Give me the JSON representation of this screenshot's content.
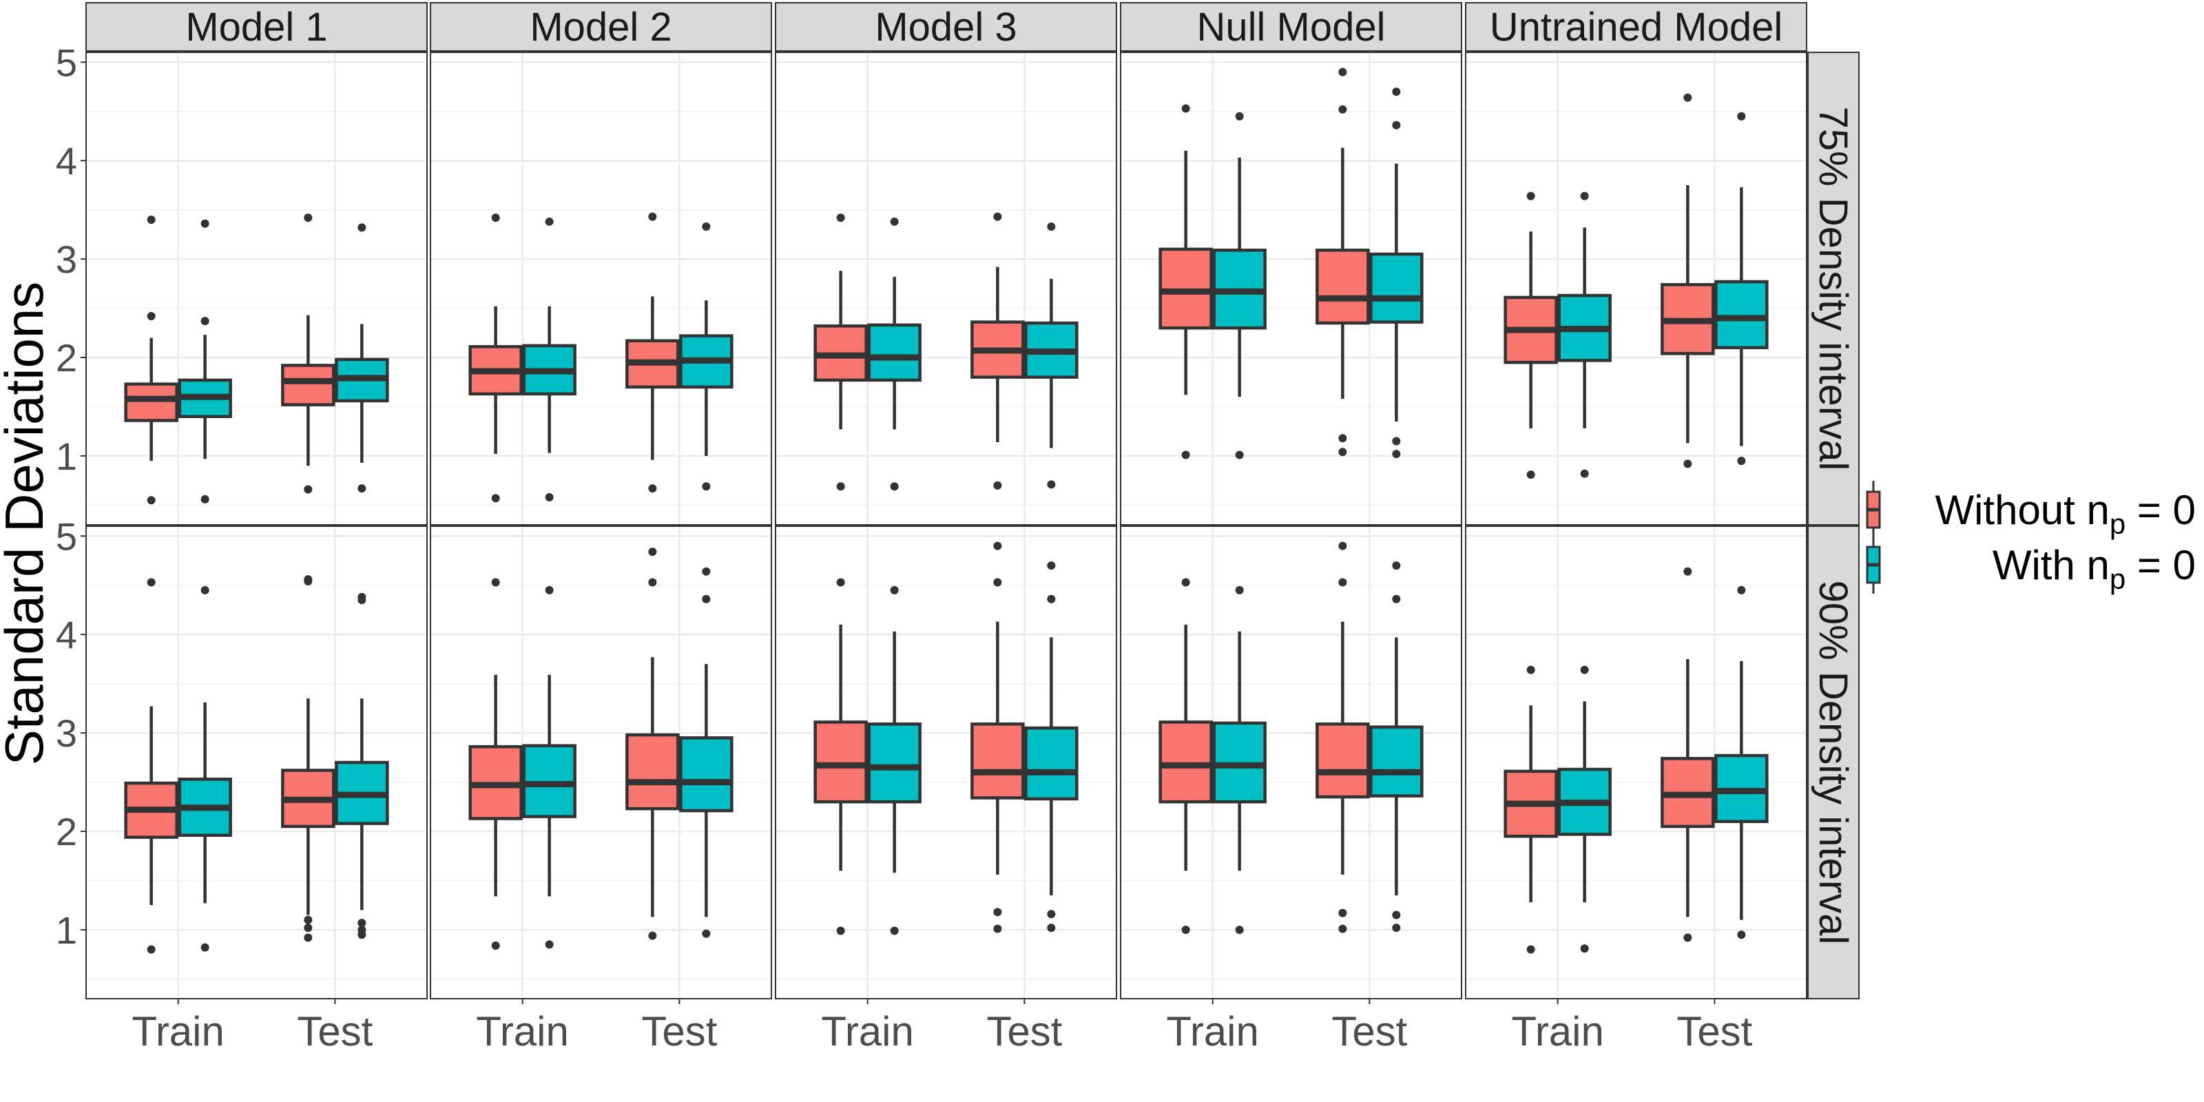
{
  "chart_data": {
    "type": "boxplot",
    "ylabel": "Standard Deviations",
    "xlabel": "",
    "ylim": [
      0.3,
      5.1
    ],
    "y_ticks": [
      1,
      2,
      3,
      4,
      5
    ],
    "x_categories": [
      "Train",
      "Test"
    ],
    "facet_columns": [
      "Model 1",
      "Model 2",
      "Model 3",
      "Null Model",
      "Untrained Model"
    ],
    "facet_rows": [
      "75% Density interval",
      "90% Density interval"
    ],
    "grid": true,
    "legend_position": "right",
    "legend": [
      {
        "key": "without",
        "label_prefix": "Without ",
        "symbol": "n",
        "subscript": "p",
        "label_suffix": " = 0",
        "color": "#F8766D"
      },
      {
        "key": "with",
        "label_prefix": "With ",
        "symbol": "n",
        "subscript": "p",
        "label_suffix": " = 0",
        "color": "#00BFC4"
      }
    ],
    "colors": {
      "without": "#F8766D",
      "with": "#00BFC4",
      "line": "#333333",
      "strip_bg": "#D9D9D9",
      "border": "#333333"
    },
    "panels": [
      {
        "col": "Model 1",
        "row": "75% Density interval",
        "groups": [
          {
            "category": "Train",
            "series": "without",
            "min": 0.95,
            "q1": 1.36,
            "median": 1.58,
            "q3": 1.73,
            "max": 2.2,
            "outliers": [
              0.55,
              2.42,
              3.4
            ]
          },
          {
            "category": "Train",
            "series": "with",
            "min": 0.97,
            "q1": 1.4,
            "median": 1.6,
            "q3": 1.77,
            "max": 2.23,
            "outliers": [
              0.56,
              2.37,
              3.36
            ]
          },
          {
            "category": "Test",
            "series": "without",
            "min": 0.9,
            "q1": 1.52,
            "median": 1.76,
            "q3": 1.92,
            "max": 2.43,
            "outliers": [
              0.66,
              3.42
            ]
          },
          {
            "category": "Test",
            "series": "with",
            "min": 0.93,
            "q1": 1.56,
            "median": 1.79,
            "q3": 1.98,
            "max": 2.34,
            "outliers": [
              0.67,
              3.32
            ]
          }
        ]
      },
      {
        "col": "Model 2",
        "row": "75% Density interval",
        "groups": [
          {
            "category": "Train",
            "series": "without",
            "min": 1.02,
            "q1": 1.63,
            "median": 1.86,
            "q3": 2.11,
            "max": 2.52,
            "outliers": [
              0.57,
              3.42
            ]
          },
          {
            "category": "Train",
            "series": "with",
            "min": 1.03,
            "q1": 1.63,
            "median": 1.86,
            "q3": 2.12,
            "max": 2.52,
            "outliers": [
              0.58,
              3.38
            ]
          },
          {
            "category": "Test",
            "series": "without",
            "min": 0.96,
            "q1": 1.7,
            "median": 1.95,
            "q3": 2.17,
            "max": 2.62,
            "outliers": [
              0.67,
              3.43
            ]
          },
          {
            "category": "Test",
            "series": "with",
            "min": 1.0,
            "q1": 1.7,
            "median": 1.97,
            "q3": 2.22,
            "max": 2.58,
            "outliers": [
              0.69,
              3.33
            ]
          }
        ]
      },
      {
        "col": "Model 3",
        "row": "75% Density interval",
        "groups": [
          {
            "category": "Train",
            "series": "without",
            "min": 1.27,
            "q1": 1.77,
            "median": 2.02,
            "q3": 2.32,
            "max": 2.88,
            "outliers": [
              0.69,
              3.42
            ]
          },
          {
            "category": "Train",
            "series": "with",
            "min": 1.27,
            "q1": 1.77,
            "median": 2.0,
            "q3": 2.33,
            "max": 2.82,
            "outliers": [
              0.69,
              3.38
            ]
          },
          {
            "category": "Test",
            "series": "without",
            "min": 1.14,
            "q1": 1.8,
            "median": 2.07,
            "q3": 2.36,
            "max": 2.92,
            "outliers": [
              0.7,
              3.43
            ]
          },
          {
            "category": "Test",
            "series": "with",
            "min": 1.08,
            "q1": 1.8,
            "median": 2.06,
            "q3": 2.35,
            "max": 2.8,
            "outliers": [
              0.71,
              3.33
            ]
          }
        ]
      },
      {
        "col": "Null Model",
        "row": "75% Density interval",
        "groups": [
          {
            "category": "Train",
            "series": "without",
            "min": 1.62,
            "q1": 2.3,
            "median": 2.67,
            "q3": 3.1,
            "max": 4.1,
            "outliers": [
              1.01,
              4.53
            ]
          },
          {
            "category": "Train",
            "series": "with",
            "min": 1.6,
            "q1": 2.3,
            "median": 2.67,
            "q3": 3.09,
            "max": 4.03,
            "outliers": [
              1.01,
              4.45
            ]
          },
          {
            "category": "Test",
            "series": "without",
            "min": 1.58,
            "q1": 2.35,
            "median": 2.6,
            "q3": 3.09,
            "max": 4.13,
            "outliers": [
              1.04,
              1.18,
              4.52,
              4.9
            ]
          },
          {
            "category": "Test",
            "series": "with",
            "min": 1.35,
            "q1": 2.36,
            "median": 2.6,
            "q3": 3.05,
            "max": 3.97,
            "outliers": [
              1.02,
              1.15,
              4.36,
              4.7
            ]
          }
        ]
      },
      {
        "col": "Untrained Model",
        "row": "75% Density interval",
        "groups": [
          {
            "category": "Train",
            "series": "without",
            "min": 1.28,
            "q1": 1.95,
            "median": 2.28,
            "q3": 2.61,
            "max": 3.28,
            "outliers": [
              0.81,
              3.64
            ]
          },
          {
            "category": "Train",
            "series": "with",
            "min": 1.28,
            "q1": 1.97,
            "median": 2.29,
            "q3": 2.63,
            "max": 3.32,
            "outliers": [
              0.82,
              3.64
            ]
          },
          {
            "category": "Test",
            "series": "without",
            "min": 1.13,
            "q1": 2.04,
            "median": 2.37,
            "q3": 2.74,
            "max": 3.75,
            "outliers": [
              0.92,
              4.64
            ]
          },
          {
            "category": "Test",
            "series": "with",
            "min": 1.1,
            "q1": 2.1,
            "median": 2.4,
            "q3": 2.77,
            "max": 3.73,
            "outliers": [
              0.95,
              4.45
            ]
          }
        ]
      },
      {
        "col": "Model 1",
        "row": "90% Density interval",
        "groups": [
          {
            "category": "Train",
            "series": "without",
            "min": 1.25,
            "q1": 1.94,
            "median": 2.22,
            "q3": 2.49,
            "max": 3.27,
            "outliers": [
              0.8,
              4.53
            ]
          },
          {
            "category": "Train",
            "series": "with",
            "min": 1.27,
            "q1": 1.96,
            "median": 2.24,
            "q3": 2.53,
            "max": 3.31,
            "outliers": [
              0.82,
              4.45
            ]
          },
          {
            "category": "Test",
            "series": "without",
            "min": 1.15,
            "q1": 2.05,
            "median": 2.32,
            "q3": 2.62,
            "max": 3.35,
            "outliers": [
              0.92,
              1.02,
              1.1,
              4.54,
              4.56
            ]
          },
          {
            "category": "Test",
            "series": "with",
            "min": 1.2,
            "q1": 2.08,
            "median": 2.37,
            "q3": 2.7,
            "max": 3.35,
            "outliers": [
              0.95,
              1.0,
              1.07,
              4.35,
              4.38
            ]
          }
        ]
      },
      {
        "col": "Model 2",
        "row": "90% Density interval",
        "groups": [
          {
            "category": "Train",
            "series": "without",
            "min": 1.34,
            "q1": 2.13,
            "median": 2.47,
            "q3": 2.86,
            "max": 3.59,
            "outliers": [
              0.84,
              4.53
            ]
          },
          {
            "category": "Train",
            "series": "with",
            "min": 1.34,
            "q1": 2.15,
            "median": 2.48,
            "q3": 2.87,
            "max": 3.59,
            "outliers": [
              0.85,
              4.45
            ]
          },
          {
            "category": "Test",
            "series": "without",
            "min": 1.13,
            "q1": 2.23,
            "median": 2.5,
            "q3": 2.98,
            "max": 3.77,
            "outliers": [
              0.94,
              4.53,
              4.84
            ]
          },
          {
            "category": "Test",
            "series": "with",
            "min": 1.13,
            "q1": 2.21,
            "median": 2.5,
            "q3": 2.95,
            "max": 3.7,
            "outliers": [
              0.96,
              4.36,
              4.64
            ]
          }
        ]
      },
      {
        "col": "Model 3",
        "row": "90% Density interval",
        "groups": [
          {
            "category": "Train",
            "series": "without",
            "min": 1.6,
            "q1": 2.3,
            "median": 2.67,
            "q3": 3.11,
            "max": 4.1,
            "outliers": [
              0.99,
              4.53
            ]
          },
          {
            "category": "Train",
            "series": "with",
            "min": 1.58,
            "q1": 2.3,
            "median": 2.65,
            "q3": 3.09,
            "max": 4.03,
            "outliers": [
              0.99,
              4.45
            ]
          },
          {
            "category": "Test",
            "series": "without",
            "min": 1.56,
            "q1": 2.34,
            "median": 2.6,
            "q3": 3.09,
            "max": 4.13,
            "outliers": [
              1.01,
              1.18,
              4.53,
              4.9
            ]
          },
          {
            "category": "Test",
            "series": "with",
            "min": 1.35,
            "q1": 2.33,
            "median": 2.6,
            "q3": 3.05,
            "max": 3.97,
            "outliers": [
              1.02,
              1.16,
              4.36,
              4.7
            ]
          }
        ]
      },
      {
        "col": "Null Model",
        "row": "90% Density interval",
        "groups": [
          {
            "category": "Train",
            "series": "without",
            "min": 1.6,
            "q1": 2.3,
            "median": 2.67,
            "q3": 3.11,
            "max": 4.1,
            "outliers": [
              1.0,
              4.53
            ]
          },
          {
            "category": "Train",
            "series": "with",
            "min": 1.6,
            "q1": 2.3,
            "median": 2.67,
            "q3": 3.1,
            "max": 4.03,
            "outliers": [
              1.0,
              4.45
            ]
          },
          {
            "category": "Test",
            "series": "without",
            "min": 1.56,
            "q1": 2.35,
            "median": 2.6,
            "q3": 3.09,
            "max": 4.13,
            "outliers": [
              1.01,
              1.17,
              4.53,
              4.9
            ]
          },
          {
            "category": "Test",
            "series": "with",
            "min": 1.35,
            "q1": 2.36,
            "median": 2.6,
            "q3": 3.06,
            "max": 3.97,
            "outliers": [
              1.02,
              1.15,
              4.36,
              4.7
            ]
          }
        ]
      },
      {
        "col": "Untrained Model",
        "row": "90% Density interval",
        "groups": [
          {
            "category": "Train",
            "series": "without",
            "min": 1.28,
            "q1": 1.95,
            "median": 2.28,
            "q3": 2.61,
            "max": 3.28,
            "outliers": [
              0.8,
              3.64
            ]
          },
          {
            "category": "Train",
            "series": "with",
            "min": 1.28,
            "q1": 1.97,
            "median": 2.29,
            "q3": 2.63,
            "max": 3.32,
            "outliers": [
              0.81,
              3.64
            ]
          },
          {
            "category": "Test",
            "series": "without",
            "min": 1.13,
            "q1": 2.05,
            "median": 2.37,
            "q3": 2.74,
            "max": 3.75,
            "outliers": [
              0.92,
              4.64
            ]
          },
          {
            "category": "Test",
            "series": "with",
            "min": 1.1,
            "q1": 2.1,
            "median": 2.41,
            "q3": 2.77,
            "max": 3.73,
            "outliers": [
              0.95,
              4.45
            ]
          }
        ]
      }
    ]
  }
}
